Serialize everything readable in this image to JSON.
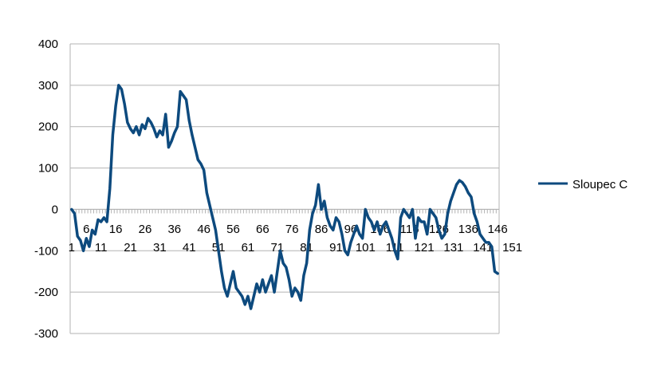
{
  "chart_data": {
    "type": "line",
    "title": "",
    "xlabel": "",
    "ylabel": "",
    "ylim": [
      -300,
      400
    ],
    "yticks": [
      -300,
      -200,
      -100,
      0,
      100,
      200,
      300,
      400
    ],
    "grid": "horizontal",
    "legend_position": "right",
    "x_tick_labels": [
      "1",
      "6",
      "11",
      "16",
      "21",
      "26",
      "31",
      "36",
      "41",
      "46",
      "51",
      "56",
      "61",
      "66",
      "71",
      "76",
      "81",
      "86",
      "91",
      "96",
      "101",
      "106",
      "111",
      "116",
      "121",
      "126",
      "131",
      "136",
      "141",
      "146",
      "151"
    ],
    "series": [
      {
        "name": "Sloupec C",
        "color": "#0d4a7e",
        "values": [
          0,
          -10,
          -65,
          -75,
          -100,
          -70,
          -90,
          -50,
          -60,
          -25,
          -30,
          -20,
          -30,
          50,
          180,
          250,
          300,
          290,
          255,
          210,
          195,
          185,
          200,
          180,
          205,
          195,
          220,
          210,
          195,
          175,
          190,
          180,
          230,
          150,
          165,
          185,
          200,
          285,
          275,
          265,
          215,
          180,
          150,
          120,
          110,
          95,
          40,
          10,
          -20,
          -50,
          -100,
          -150,
          -190,
          -210,
          -180,
          -150,
          -190,
          -200,
          -210,
          -230,
          -210,
          -240,
          -210,
          -180,
          -200,
          -170,
          -200,
          -180,
          -160,
          -200,
          -150,
          -100,
          -130,
          -140,
          -170,
          -210,
          -190,
          -200,
          -220,
          -160,
          -130,
          -50,
          -10,
          10,
          60,
          0,
          20,
          -20,
          -40,
          -50,
          -20,
          -30,
          -60,
          -100,
          -110,
          -80,
          -60,
          -40,
          -60,
          -70,
          0,
          -20,
          -30,
          -50,
          -30,
          -60,
          -40,
          -30,
          -50,
          -70,
          -100,
          -120,
          -20,
          0,
          -10,
          -20,
          0,
          -70,
          -20,
          -30,
          -30,
          -60,
          0,
          -10,
          -20,
          -50,
          -70,
          -60,
          -10,
          20,
          40,
          60,
          70,
          65,
          55,
          40,
          30,
          -10,
          -30,
          -60,
          -70,
          -80,
          -80,
          -90,
          -150,
          -155
        ]
      }
    ]
  }
}
